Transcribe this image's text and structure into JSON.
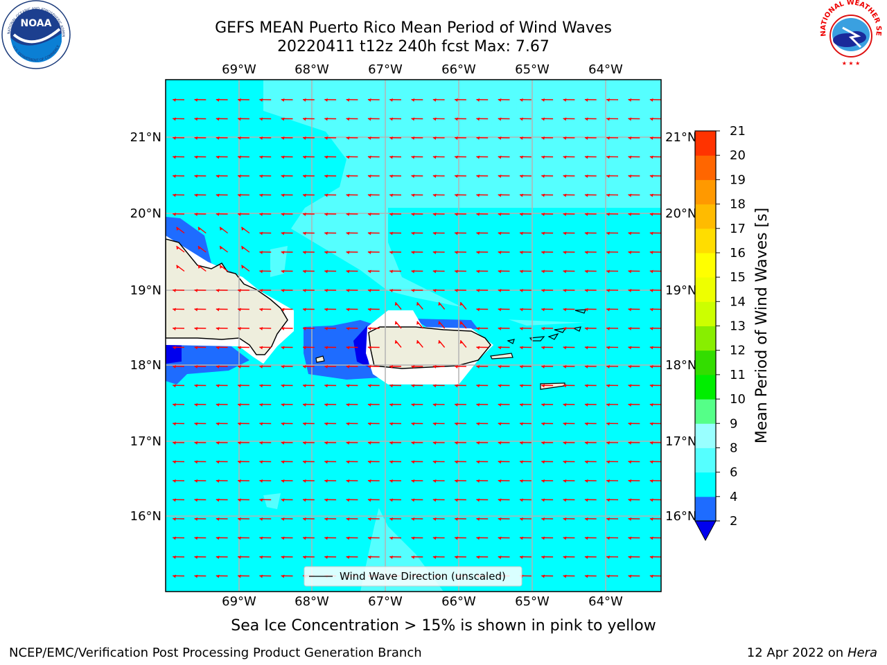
{
  "header": {
    "title_line1": "GEFS MEAN Puerto Rico Mean Period of Wind Waves",
    "title_line2": "20220411 t12z 240h fcst   Max: 7.67"
  },
  "logos": {
    "noaa_text": "NOAA",
    "noaa_ring_top": "NATIONAL OCEANIC AND ATMOSPHERIC ADMINISTRATION",
    "noaa_ring_bottom": "U.S. DEPARTMENT OF COMMERCE",
    "nws_ring": "NATIONAL WEATHER SERVICE"
  },
  "map": {
    "lon_labels": [
      "69°W",
      "68°W",
      "67°W",
      "66°W",
      "65°W",
      "64°W"
    ],
    "lat_labels": [
      "21°N",
      "20°N",
      "19°N",
      "18°N",
      "17°N",
      "16°N"
    ],
    "legend_label": "Wind Wave Direction (unscaled)",
    "colors": {
      "ocean_light": "#55ffff",
      "ocean": "#00ffff",
      "band_2_4": "#1e6cff",
      "below_2": "#0000ee",
      "land": "#eeeedd",
      "arrow": "#ff0000"
    }
  },
  "colorbar": {
    "label": "Mean Period of Wind Waves [s]",
    "ticks": [
      "2",
      "4",
      "6",
      "8",
      "9",
      "10",
      "11",
      "12",
      "13",
      "14",
      "15",
      "16",
      "17",
      "18",
      "19",
      "20",
      "21"
    ],
    "colors": [
      "#1e6cff",
      "#00ffff",
      "#55ffff",
      "#99ffff",
      "#55ff88",
      "#00ee00",
      "#33dd00",
      "#88ee00",
      "#ccff00",
      "#eeff00",
      "#ffff00",
      "#ffdd00",
      "#ffbb00",
      "#ff9900",
      "#ff6600",
      "#ff3300",
      "#ff0000"
    ],
    "extend_color": "#0000ee"
  },
  "footer": {
    "note": "Sea Ice Concentration > 15% is shown in pink to yellow",
    "left": "NCEP/EMC/Verification Post Processing Product Generation Branch",
    "right_date": "12 Apr 2022 on ",
    "right_host": "Hera"
  }
}
